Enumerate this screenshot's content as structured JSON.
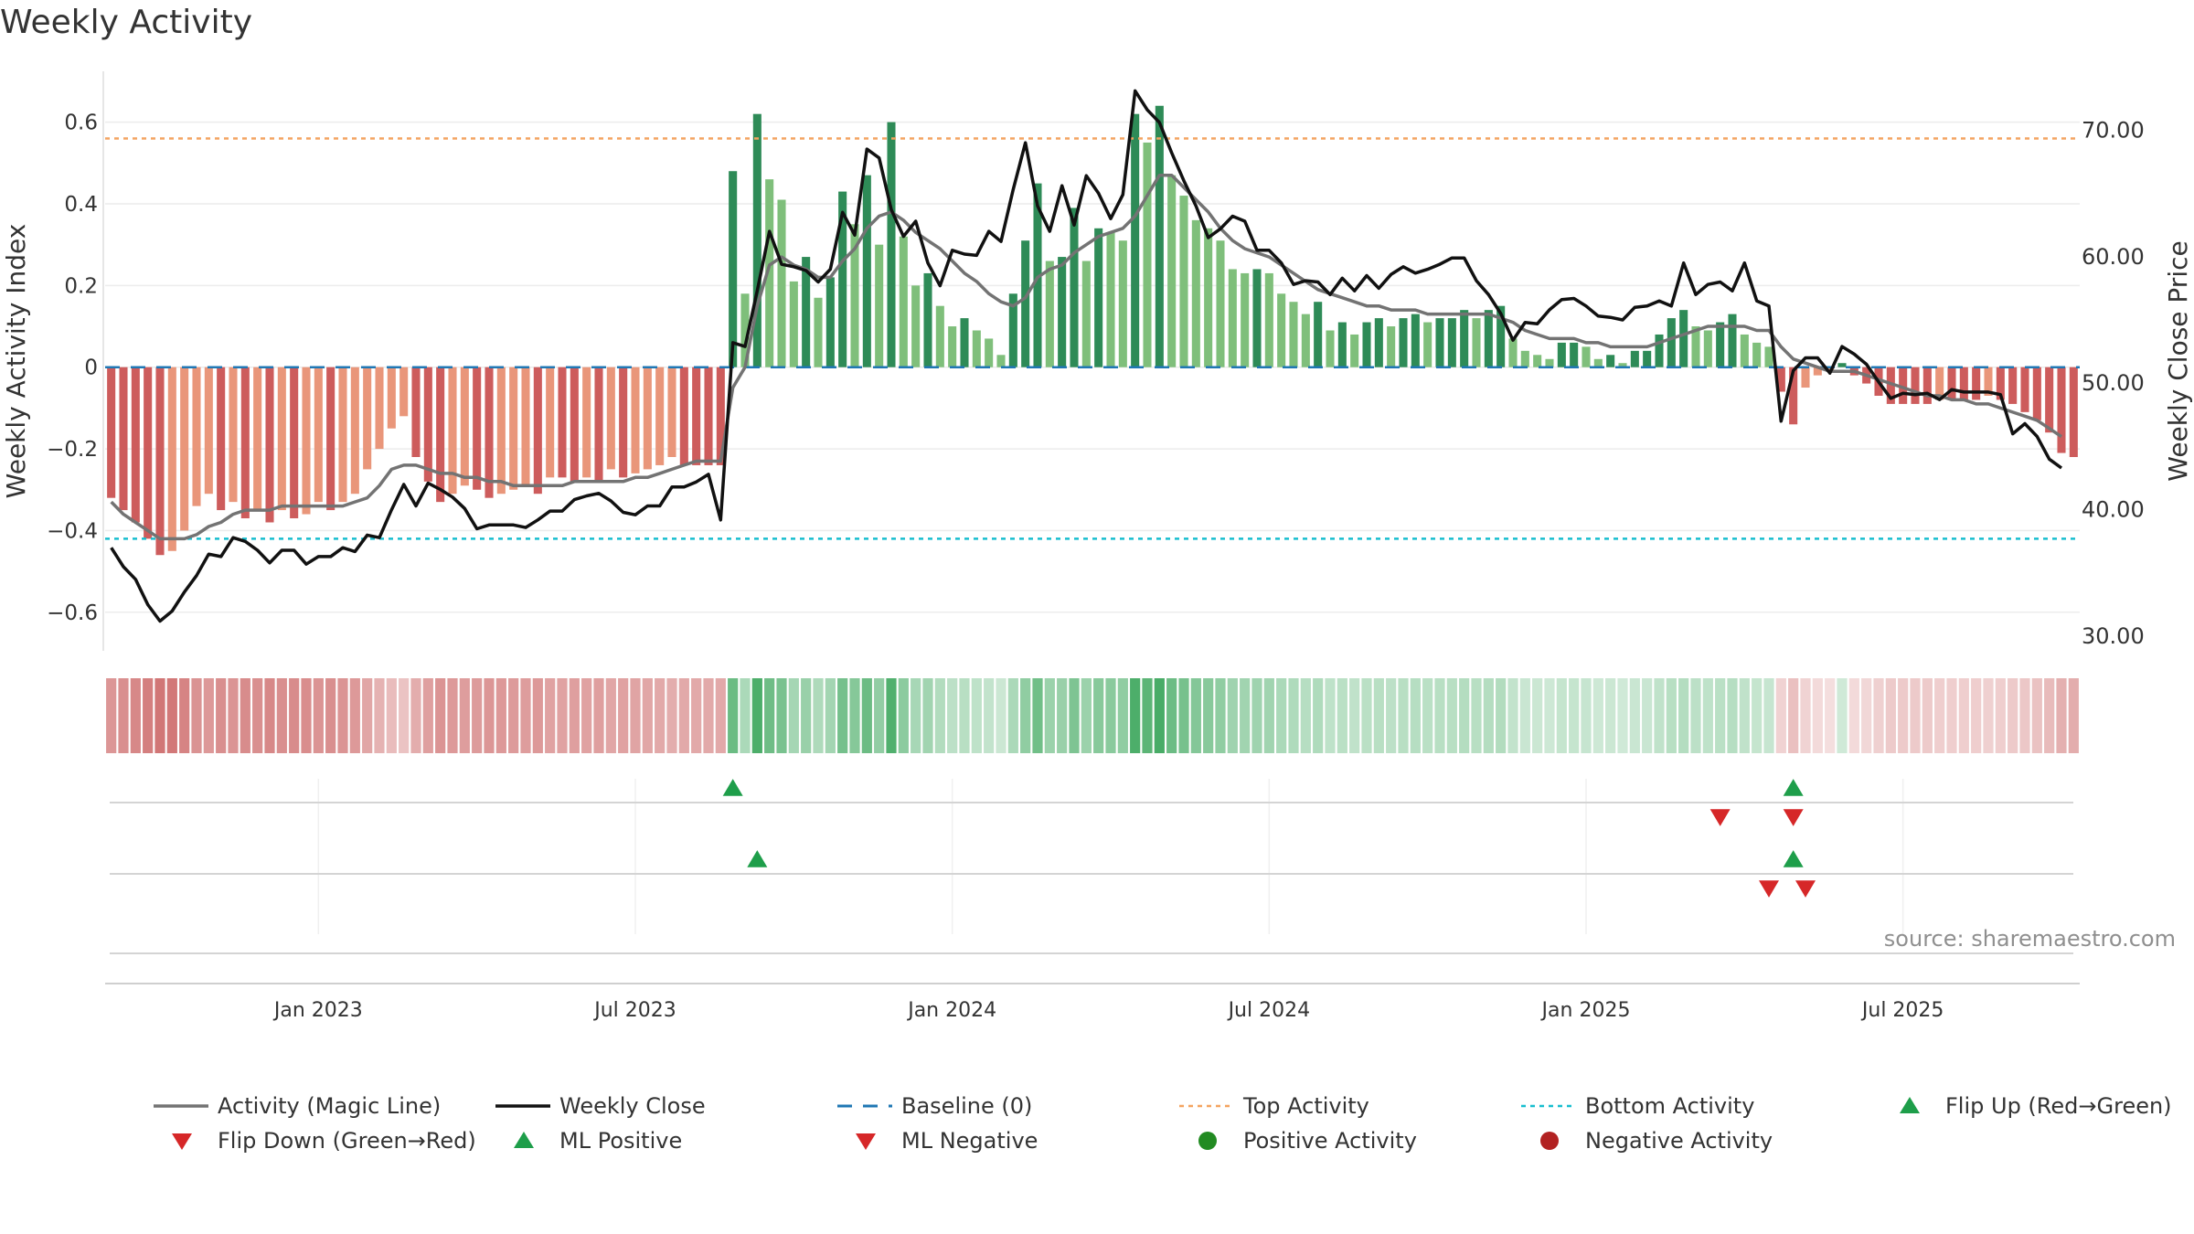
{
  "title": "Weekly Activity",
  "source": "source: sharemaestro.com",
  "colors": {
    "pos_dark": "#2e8b57",
    "pos_light": "#7fbf7b",
    "neg_dark": "#cd5c5c",
    "neg_light": "#e9967a",
    "magic_line": "#737373",
    "close_line": "#111111",
    "baseline": "#1f77b4",
    "top": "#f4a460",
    "bottom": "#17becf",
    "flip_up": "#1e9e4a",
    "flip_down": "#d62728",
    "pos_dot": "#228b22",
    "neg_dot": "#b22222"
  },
  "chart_data": {
    "type": "bar",
    "ylabel_left": "Weekly Activity Index",
    "ylabel_right": "Weekly Close Price",
    "left_ticks": [
      {
        "v": 0.6,
        "label": "0.6"
      },
      {
        "v": 0.4,
        "label": "0.4"
      },
      {
        "v": 0.2,
        "label": "0.2"
      },
      {
        "v": 0,
        "label": "0"
      },
      {
        "v": -0.2,
        "label": "−0.2"
      },
      {
        "v": -0.4,
        "label": "−0.4"
      },
      {
        "v": -0.6,
        "label": "−0.6"
      }
    ],
    "right_ticks": [
      {
        "v": 70,
        "label": "70.00"
      },
      {
        "v": 60,
        "label": "60.00"
      },
      {
        "v": 50,
        "label": "50.00"
      },
      {
        "v": 40,
        "label": "40.00"
      },
      {
        "v": 30,
        "label": "30.00"
      }
    ],
    "ylim_left": [
      -0.69,
      0.72
    ],
    "ylim_right": [
      29,
      74.5
    ],
    "top_activity": 0.56,
    "bottom_activity": -0.42,
    "x_ticks": [
      "Jan 2023",
      "Jul 2023",
      "Jan 2024",
      "Jul 2024",
      "Jan 2025",
      "Jul 2025"
    ],
    "x_tick_weeks": [
      17,
      43,
      69,
      95,
      121,
      147
    ],
    "activity": [
      -0.32,
      -0.35,
      -0.38,
      -0.42,
      -0.46,
      -0.45,
      -0.4,
      -0.34,
      -0.31,
      -0.35,
      -0.33,
      -0.37,
      -0.35,
      -0.38,
      -0.35,
      -0.37,
      -0.36,
      -0.33,
      -0.35,
      -0.33,
      -0.31,
      -0.25,
      -0.2,
      -0.15,
      -0.12,
      -0.22,
      -0.28,
      -0.33,
      -0.31,
      -0.29,
      -0.3,
      -0.32,
      -0.31,
      -0.3,
      -0.29,
      -0.31,
      -0.27,
      -0.27,
      -0.28,
      -0.27,
      -0.28,
      -0.25,
      -0.27,
      -0.26,
      -0.25,
      -0.24,
      -0.22,
      -0.24,
      -0.24,
      -0.24,
      -0.24,
      0.48,
      0.18,
      0.62,
      0.46,
      0.41,
      0.21,
      0.27,
      0.17,
      0.22,
      0.43,
      0.35,
      0.47,
      0.3,
      0.6,
      0.32,
      0.2,
      0.23,
      0.15,
      0.1,
      0.12,
      0.09,
      0.07,
      0.03,
      0.18,
      0.31,
      0.45,
      0.26,
      0.27,
      0.39,
      0.26,
      0.34,
      0.33,
      0.31,
      0.62,
      0.55,
      0.64,
      0.47,
      0.42,
      0.36,
      0.34,
      0.31,
      0.24,
      0.23,
      0.24,
      0.23,
      0.18,
      0.16,
      0.13,
      0.16,
      0.09,
      0.11,
      0.08,
      0.11,
      0.12,
      0.1,
      0.12,
      0.13,
      0.11,
      0.12,
      0.12,
      0.14,
      0.12,
      0.14,
      0.15,
      0.07,
      0.04,
      0.03,
      0.02,
      0.06,
      0.06,
      0.05,
      0.02,
      0.03,
      0.01,
      0.04,
      0.04,
      0.08,
      0.12,
      0.14,
      0.1,
      0.09,
      0.11,
      0.13,
      0.08,
      0.06,
      0.05,
      -0.06,
      -0.14,
      -0.05,
      -0.02,
      -0.01,
      0.01,
      -0.02,
      -0.04,
      -0.07,
      -0.09,
      -0.09,
      -0.09,
      -0.09,
      -0.08,
      -0.08,
      -0.08,
      -0.08,
      -0.07,
      -0.08,
      -0.09,
      -0.11,
      -0.13,
      -0.16,
      -0.21,
      -0.22
    ],
    "magic_line": [
      -0.33,
      -0.36,
      -0.38,
      -0.4,
      -0.42,
      -0.42,
      -0.42,
      -0.41,
      -0.39,
      -0.38,
      -0.36,
      -0.35,
      -0.35,
      -0.35,
      -0.34,
      -0.34,
      -0.34,
      -0.34,
      -0.34,
      -0.34,
      -0.33,
      -0.32,
      -0.29,
      -0.25,
      -0.24,
      -0.24,
      -0.25,
      -0.26,
      -0.26,
      -0.27,
      -0.27,
      -0.28,
      -0.28,
      -0.29,
      -0.29,
      -0.29,
      -0.29,
      -0.29,
      -0.28,
      -0.28,
      -0.28,
      -0.28,
      -0.28,
      -0.27,
      -0.27,
      -0.26,
      -0.25,
      -0.24,
      -0.23,
      -0.23,
      -0.23,
      -0.05,
      0.0,
      0.15,
      0.25,
      0.27,
      0.25,
      0.24,
      0.22,
      0.22,
      0.26,
      0.29,
      0.34,
      0.37,
      0.38,
      0.36,
      0.33,
      0.31,
      0.29,
      0.26,
      0.23,
      0.21,
      0.18,
      0.16,
      0.15,
      0.17,
      0.22,
      0.24,
      0.25,
      0.28,
      0.3,
      0.32,
      0.33,
      0.34,
      0.37,
      0.42,
      0.47,
      0.47,
      0.44,
      0.41,
      0.38,
      0.34,
      0.31,
      0.29,
      0.28,
      0.27,
      0.25,
      0.23,
      0.21,
      0.19,
      0.18,
      0.17,
      0.16,
      0.15,
      0.15,
      0.14,
      0.14,
      0.14,
      0.13,
      0.13,
      0.13,
      0.13,
      0.13,
      0.13,
      0.12,
      0.11,
      0.09,
      0.08,
      0.07,
      0.07,
      0.07,
      0.06,
      0.06,
      0.05,
      0.05,
      0.05,
      0.05,
      0.06,
      0.07,
      0.08,
      0.09,
      0.1,
      0.1,
      0.1,
      0.1,
      0.09,
      0.09,
      0.05,
      0.02,
      0.01,
      0.0,
      -0.01,
      -0.01,
      -0.01,
      -0.02,
      -0.03,
      -0.04,
      -0.05,
      -0.06,
      -0.07,
      -0.07,
      -0.08,
      -0.08,
      -0.09,
      -0.09,
      -0.1,
      -0.11,
      -0.12,
      -0.13,
      -0.15,
      -0.17
    ],
    "weekly_close": [
      37.0,
      35.5,
      34.5,
      32.5,
      31.2,
      32.0,
      33.5,
      34.8,
      36.5,
      36.3,
      37.8,
      37.5,
      36.8,
      35.8,
      36.8,
      36.8,
      35.7,
      36.3,
      36.3,
      37.0,
      36.7,
      38.0,
      37.8,
      40.0,
      42.0,
      40.3,
      42.1,
      41.6,
      41.0,
      40.1,
      38.5,
      38.8,
      38.8,
      38.8,
      38.6,
      39.2,
      39.9,
      39.9,
      40.8,
      41.1,
      41.3,
      40.7,
      39.8,
      39.6,
      40.3,
      40.3,
      41.8,
      41.8,
      42.2,
      42.8,
      39.2,
      53.2,
      52.9,
      57.3,
      62.0,
      59.4,
      59.2,
      58.9,
      58.0,
      59.0,
      63.5,
      61.7,
      68.5,
      67.8,
      63.7,
      61.6,
      62.8,
      59.5,
      57.7,
      60.5,
      60.2,
      60.1,
      62.0,
      61.2,
      65.3,
      69.0,
      64.0,
      62.0,
      65.6,
      62.5,
      66.4,
      65.0,
      63.0,
      64.9,
      73.1,
      71.6,
      70.6,
      68.2,
      66.0,
      64.0,
      61.5,
      62.2,
      63.2,
      62.8,
      60.5,
      60.5,
      59.5,
      57.8,
      58.1,
      58.0,
      57.0,
      58.3,
      57.3,
      58.5,
      57.5,
      58.6,
      59.2,
      58.7,
      59.0,
      59.4,
      59.9,
      59.9,
      58.1,
      57.0,
      55.5,
      53.4,
      54.8,
      54.7,
      55.8,
      56.6,
      56.7,
      56.1,
      55.3,
      55.2,
      55.0,
      56.0,
      56.1,
      56.5,
      56.1,
      59.5,
      57.0,
      57.8,
      58.0,
      57.3,
      59.5,
      56.5,
      56.1,
      47.0,
      51.0,
      52.0,
      52.0,
      50.8,
      52.9,
      52.3,
      51.5,
      50.1,
      48.8,
      49.2,
      49.1,
      49.2,
      48.7,
      49.5,
      49.3,
      49.3,
      49.3,
      49.1,
      46.0,
      46.8,
      45.8,
      44.0,
      43.3
    ],
    "lane_rows": [
      {
        "marks": [
          {
            "week": 51,
            "shape": "up"
          },
          {
            "week": 138,
            "shape": "up"
          }
        ]
      },
      {
        "marks": [
          {
            "week": 132,
            "shape": "down"
          },
          {
            "week": 138,
            "shape": "down"
          }
        ]
      },
      {
        "marks": [
          {
            "week": 53,
            "shape": "up"
          },
          {
            "week": 138,
            "shape": "up"
          }
        ]
      },
      {
        "marks": [
          {
            "week": 136,
            "shape": "down"
          },
          {
            "week": 139,
            "shape": "down"
          }
        ]
      }
    ],
    "legend": [
      {
        "label": "Activity (Magic Line)",
        "symbol": "line-gray"
      },
      {
        "label": "Weekly Close",
        "symbol": "line-black"
      },
      {
        "label": "Baseline (0)",
        "symbol": "dash-blue"
      },
      {
        "label": "Top Activity",
        "symbol": "dot-orange"
      },
      {
        "label": "Bottom Activity",
        "symbol": "dot-cyan"
      },
      {
        "label": "Flip Up (Red→Green)",
        "symbol": "tri-up-green"
      },
      {
        "label": "Flip Down (Green→Red)",
        "symbol": "tri-down-red"
      },
      {
        "label": "ML Positive",
        "symbol": "tri-up-green"
      },
      {
        "label": "ML Negative",
        "symbol": "tri-down-red"
      },
      {
        "label": "Positive Activity",
        "symbol": "circle-green"
      },
      {
        "label": "Negative Activity",
        "symbol": "circle-red"
      }
    ]
  }
}
